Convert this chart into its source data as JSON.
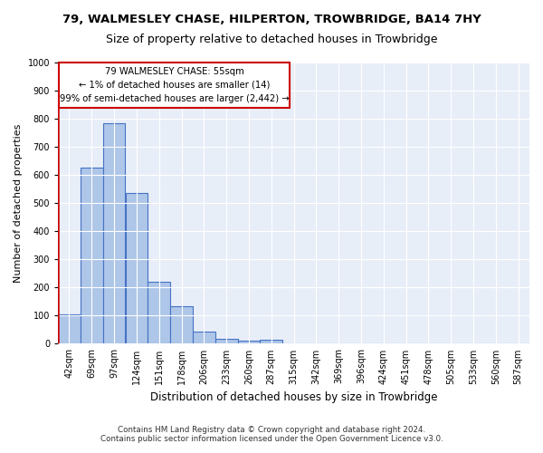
{
  "title1": "79, WALMESLEY CHASE, HILPERTON, TROWBRIDGE, BA14 7HY",
  "title2": "Size of property relative to detached houses in Trowbridge",
  "xlabel": "Distribution of detached houses by size in Trowbridge",
  "ylabel": "Number of detached properties",
  "bar_values": [
    103,
    625,
    785,
    535,
    222,
    133,
    43,
    18,
    10,
    13,
    0,
    0,
    0,
    0,
    0,
    0,
    0,
    0,
    0,
    0,
    0
  ],
  "bar_labels": [
    "42sqm",
    "69sqm",
    "97sqm",
    "124sqm",
    "151sqm",
    "178sqm",
    "206sqm",
    "233sqm",
    "260sqm",
    "287sqm",
    "315sqm",
    "342sqm",
    "369sqm",
    "396sqm",
    "424sqm",
    "451sqm",
    "478sqm",
    "505sqm",
    "533sqm",
    "560sqm",
    "587sqm"
  ],
  "bar_color": "#aec6e8",
  "bar_edge_color": "#4472c4",
  "marker_color": "#cc0000",
  "ylim": [
    0,
    1000
  ],
  "yticks": [
    0,
    100,
    200,
    300,
    400,
    500,
    600,
    700,
    800,
    900,
    1000
  ],
  "annotation_title": "79 WALMESLEY CHASE: 55sqm",
  "annotation_line1": "← 1% of detached houses are smaller (14)",
  "annotation_line2": "99% of semi-detached houses are larger (2,442) →",
  "annotation_box_color": "#cc0000",
  "background_color": "#e8eef8",
  "footer1": "Contains HM Land Registry data © Crown copyright and database right 2024.",
  "footer2": "Contains public sector information licensed under the Open Government Licence v3.0."
}
